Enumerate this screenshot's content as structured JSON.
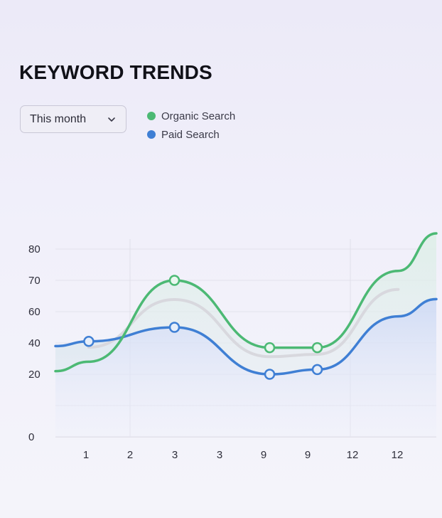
{
  "header": {
    "title": "KEYWORD TRENDS"
  },
  "filter": {
    "selected": "This month",
    "icon": "chevron-down-icon"
  },
  "colors": {
    "organic": "#4cb974",
    "paid": "#3f7fd4"
  },
  "chart_data": {
    "type": "area",
    "x_tick_labels": [
      "1",
      "2",
      "3",
      "3",
      "9",
      "9",
      "12",
      "12"
    ],
    "y_tick_labels": [
      "0",
      "20",
      "40",
      "60",
      "70",
      "80"
    ],
    "grid": true,
    "legend_position": "top-left",
    "series": [
      {
        "name": "Organic Search",
        "color": "#4cb974",
        "points": [
          {
            "x": 0.0,
            "y": 22
          },
          {
            "x": 0.7,
            "y": 28
          },
          {
            "x": 2.5,
            "y": 70,
            "marker": true
          },
          {
            "x": 4.5,
            "y": 37,
            "marker": true
          },
          {
            "x": 5.5,
            "y": 37,
            "marker": true
          },
          {
            "x": 7.2,
            "y": 73
          },
          {
            "x": 8.0,
            "y": 85
          }
        ]
      },
      {
        "name": "Paid Search",
        "color": "#3f7fd4",
        "points": [
          {
            "x": 0.0,
            "y": 38
          },
          {
            "x": 0.7,
            "y": 41,
            "marker": true
          },
          {
            "x": 2.5,
            "y": 50,
            "marker": true
          },
          {
            "x": 4.5,
            "y": 20,
            "marker": true
          },
          {
            "x": 5.5,
            "y": 23,
            "marker": true
          },
          {
            "x": 7.2,
            "y": 57
          },
          {
            "x": 8.0,
            "y": 64
          }
        ]
      }
    ]
  }
}
